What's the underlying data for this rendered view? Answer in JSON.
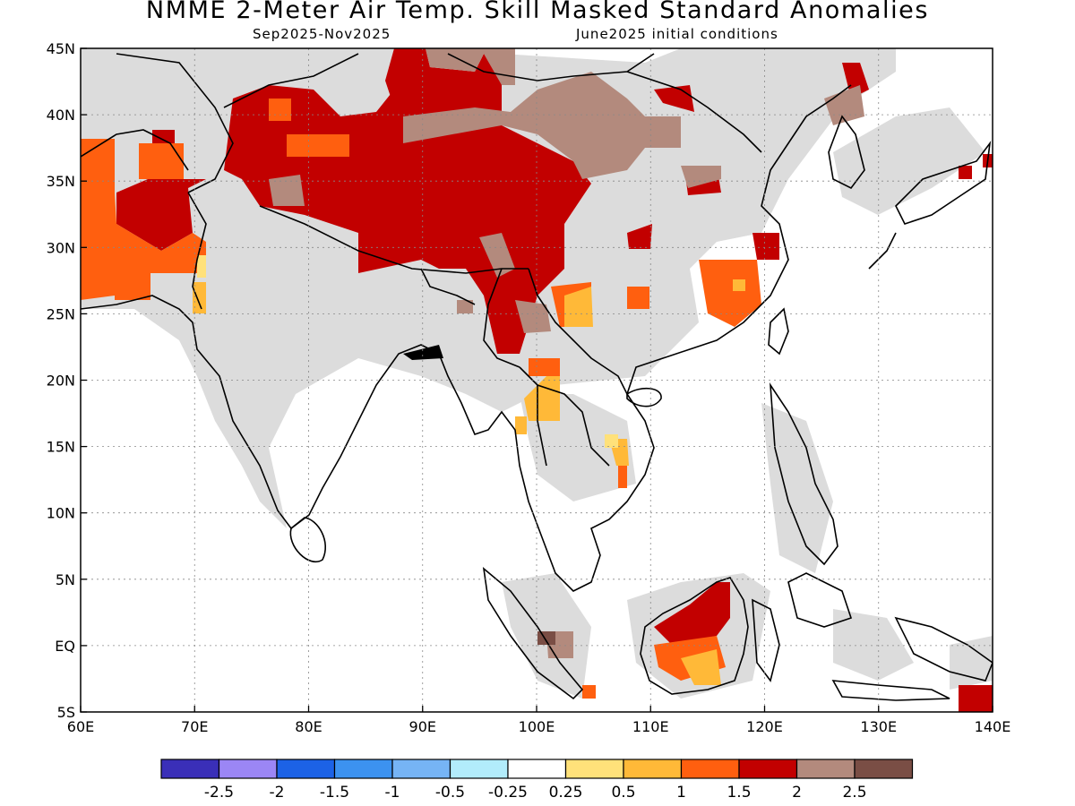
{
  "header": {
    "title": "NMME 2-Meter Air Temp. Skill Masked Standard Anomalies",
    "period": "Sep2025-Nov2025",
    "init": "June2025 initial conditions"
  },
  "map": {
    "lon_range": [
      60,
      140
    ],
    "lat_range": [
      -5,
      45
    ],
    "x_tick_labels": [
      "60E",
      "70E",
      "80E",
      "90E",
      "100E",
      "110E",
      "120E",
      "130E",
      "140E"
    ],
    "y_tick_labels": [
      "5S",
      "EQ",
      "5N",
      "10N",
      "15N",
      "20N",
      "25N",
      "30N",
      "35N",
      "40N",
      "45N"
    ],
    "grid": "dotted",
    "masked_color": "#dcdcdc"
  },
  "colorbar": {
    "colors": [
      "#3a2fb8",
      "#9b86f5",
      "#1c62e6",
      "#3c92f0",
      "#76b4f5",
      "#b2ecfb",
      "#ffffff",
      "#ffe17a",
      "#ffb938",
      "#ff5f0f",
      "#c20000",
      "#b38a7d",
      "#7a4e45"
    ],
    "tick_labels": [
      "-2.5",
      "-2",
      "-1.5",
      "-1",
      "-0.5",
      "-0.25",
      "0.25",
      "0.5",
      "1",
      "1.5",
      "2",
      "2.5"
    ]
  }
}
